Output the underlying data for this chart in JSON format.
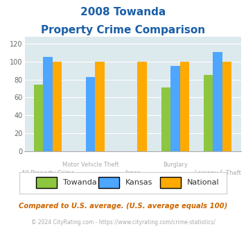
{
  "title_line1": "2008 Towanda",
  "title_line2": "Property Crime Comparison",
  "categories": [
    "All Property Crime",
    "Motor Vehicle Theft",
    "Arson",
    "Burglary",
    "Larceny & Theft"
  ],
  "towanda": [
    74,
    0,
    0,
    71,
    85
  ],
  "kansas": [
    105,
    83,
    0,
    95,
    111
  ],
  "national": [
    100,
    100,
    100,
    100,
    100
  ],
  "bar_width": 0.22,
  "ylim": [
    0,
    128
  ],
  "yticks": [
    0,
    20,
    40,
    60,
    80,
    100,
    120
  ],
  "color_towanda": "#8dc63f",
  "color_kansas": "#4da6ff",
  "color_national": "#ffaa00",
  "bg_color": "#dce9ed",
  "title_color": "#1a5fa8",
  "xlabel_upper_color": "#aaaaaa",
  "xlabel_lower_color": "#aaaaaa",
  "legend_label_towanda": "Towanda",
  "legend_label_kansas": "Kansas",
  "legend_label_national": "National",
  "legend_text_color": "#333333",
  "footnote1": "Compared to U.S. average. (U.S. average equals 100)",
  "footnote2": "© 2024 CityRating.com - https://www.cityrating.com/crime-statistics/",
  "footnote1_color": "#cc6600",
  "footnote2_color": "#aaaaaa"
}
